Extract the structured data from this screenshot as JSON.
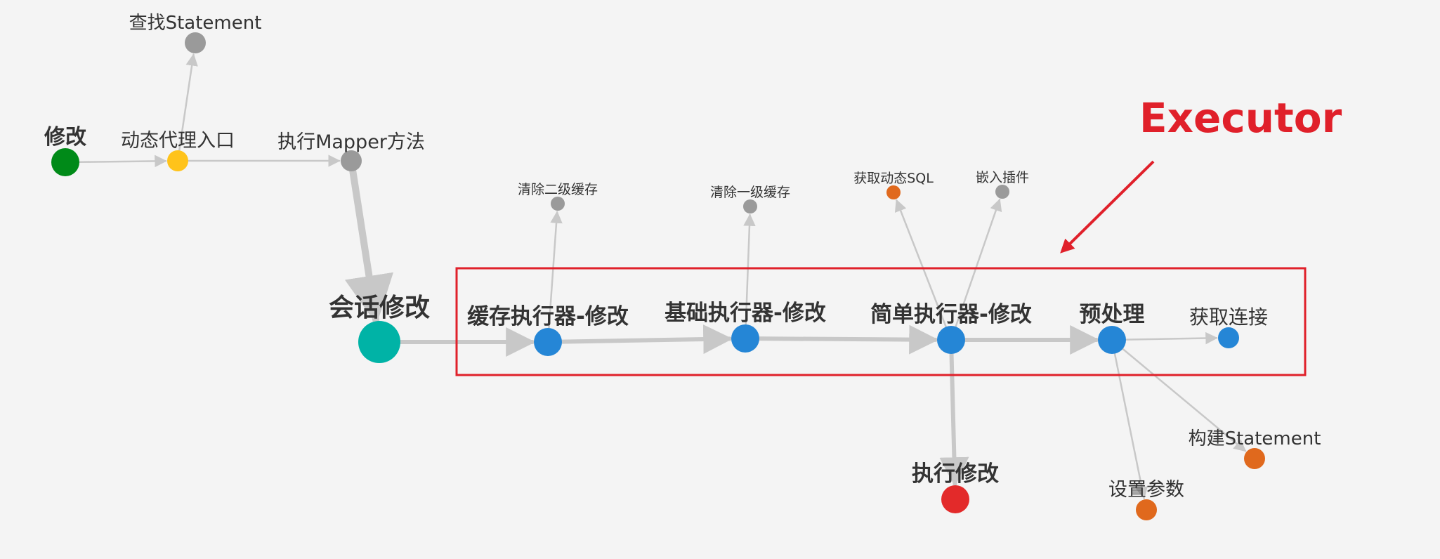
{
  "annotation": {
    "label": "Executor",
    "color": "#e0202a"
  },
  "colors": {
    "edge": "#c8c8c8",
    "text": "#333333"
  },
  "nodes": [
    {
      "id": "modify",
      "label": "修改",
      "color": "#008a18",
      "role": "start"
    },
    {
      "id": "proxy_entry",
      "label": "动态代理入口",
      "color": "#ffc31a",
      "role": "proxy"
    },
    {
      "id": "find_statement",
      "label": "查找Statement",
      "color": "#9a9a9a",
      "role": "helper"
    },
    {
      "id": "exec_mapper",
      "label": "执行Mapper方法",
      "color": "#9a9a9a",
      "role": "helper"
    },
    {
      "id": "session_modify",
      "label": "会话修改",
      "color": "#00b3a6",
      "role": "session"
    },
    {
      "id": "cache_executor",
      "label": "缓存执行器-修改",
      "color": "#2586d6",
      "role": "executor"
    },
    {
      "id": "clear_l2",
      "label": "清除二级缓存",
      "color": "#9a9a9a",
      "role": "helper"
    },
    {
      "id": "base_executor",
      "label": "基础执行器-修改",
      "color": "#2586d6",
      "role": "executor"
    },
    {
      "id": "clear_l1",
      "label": "清除一级缓存",
      "color": "#9a9a9a",
      "role": "helper"
    },
    {
      "id": "simple_executor",
      "label": "简单执行器-修改",
      "color": "#2586d6",
      "role": "executor"
    },
    {
      "id": "get_dynamic_sql",
      "label": "获取动态SQL",
      "color": "#e0691d",
      "role": "statement"
    },
    {
      "id": "embed_plugin",
      "label": "嵌入插件",
      "color": "#9a9a9a",
      "role": "helper"
    },
    {
      "id": "preprocess",
      "label": "预处理",
      "color": "#2586d6",
      "role": "executor"
    },
    {
      "id": "get_connection",
      "label": "获取连接",
      "color": "#2586d6",
      "role": "executor"
    },
    {
      "id": "exec_modify",
      "label": "执行修改",
      "color": "#e32a2a",
      "role": "end"
    },
    {
      "id": "build_statement",
      "label": "构建Statement",
      "color": "#e0691d",
      "role": "statement"
    },
    {
      "id": "set_params",
      "label": "设置参数",
      "color": "#e0691d",
      "role": "statement"
    }
  ],
  "edges": [
    {
      "from": "modify",
      "to": "proxy_entry"
    },
    {
      "from": "proxy_entry",
      "to": "find_statement"
    },
    {
      "from": "proxy_entry",
      "to": "exec_mapper"
    },
    {
      "from": "exec_mapper",
      "to": "session_modify"
    },
    {
      "from": "session_modify",
      "to": "cache_executor"
    },
    {
      "from": "cache_executor",
      "to": "clear_l2"
    },
    {
      "from": "cache_executor",
      "to": "base_executor"
    },
    {
      "from": "base_executor",
      "to": "clear_l1"
    },
    {
      "from": "base_executor",
      "to": "simple_executor"
    },
    {
      "from": "simple_executor",
      "to": "get_dynamic_sql"
    },
    {
      "from": "simple_executor",
      "to": "embed_plugin"
    },
    {
      "from": "simple_executor",
      "to": "preprocess"
    },
    {
      "from": "simple_executor",
      "to": "exec_modify"
    },
    {
      "from": "preprocess",
      "to": "get_connection"
    },
    {
      "from": "preprocess",
      "to": "build_statement"
    },
    {
      "from": "preprocess",
      "to": "set_params"
    }
  ]
}
